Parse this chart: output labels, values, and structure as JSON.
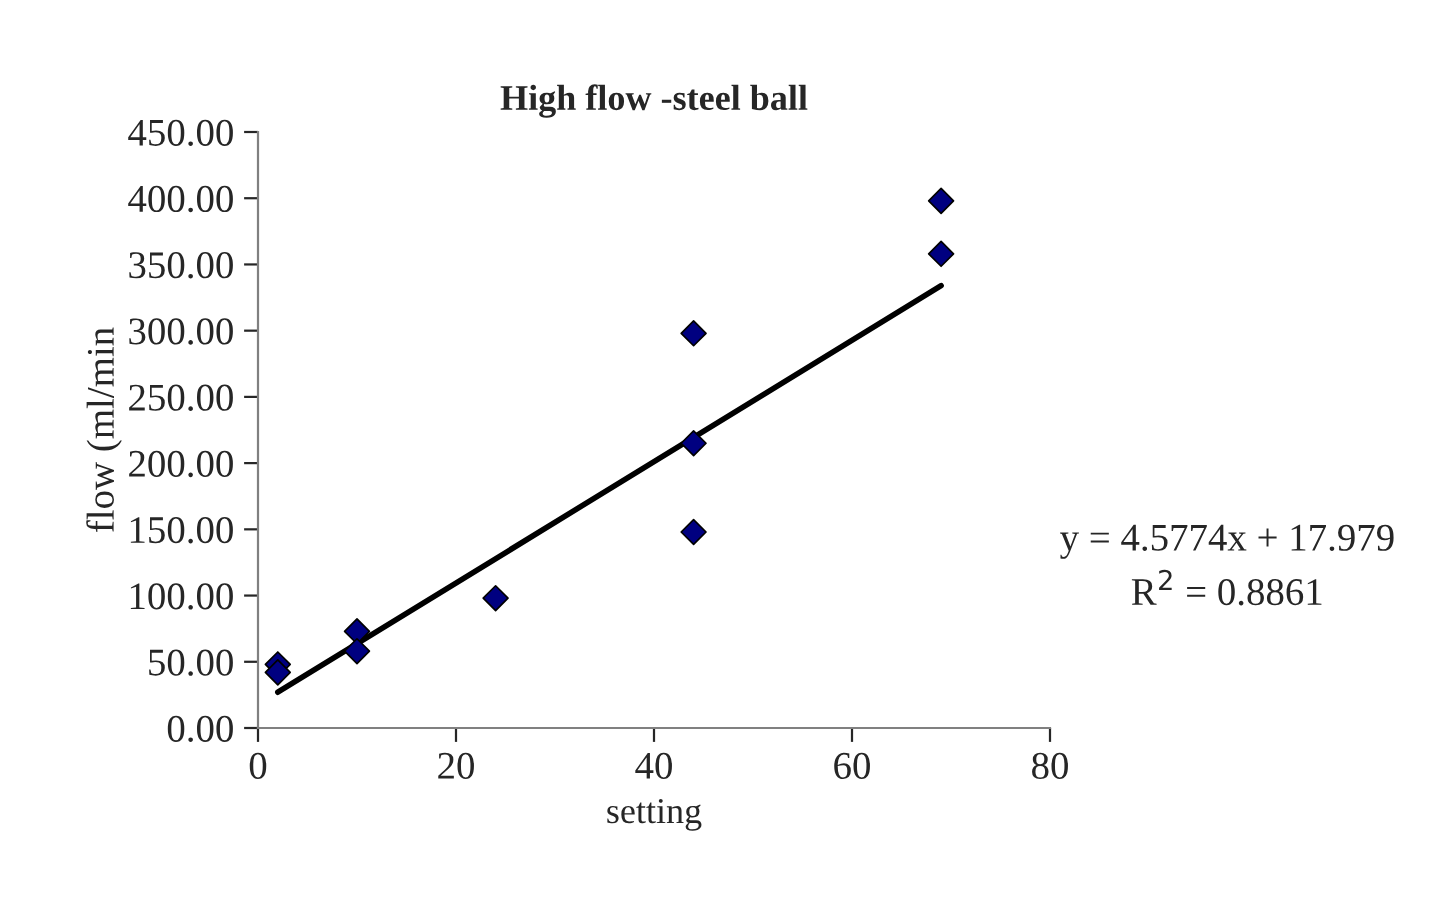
{
  "chart_data": {
    "type": "scatter",
    "title": "High flow -steel ball",
    "xlabel": "setting",
    "ylabel": "flow (ml/min",
    "series": [
      {
        "color": "#000080",
        "marker": "diamond",
        "x": [
          2,
          2,
          10,
          10,
          24,
          44,
          44,
          44,
          69,
          69
        ],
        "values": [
          48,
          42,
          73,
          58,
          98,
          298,
          215,
          148,
          398,
          358
        ]
      },
      {
        "type": "line",
        "color": "#000000",
        "marker": "none",
        "line_style": "solid",
        "x": [
          2,
          69
        ],
        "values": [
          27,
          334
        ]
      }
    ],
    "annotations": [
      "y = 4.5774x + 17.979",
      "R$^{2}$ = 0.8861"
    ],
    "xlim": [
      0,
      80
    ],
    "xticks": [
      0,
      20,
      40,
      60,
      80
    ],
    "ylim": [
      0,
      450
    ],
    "yticks": [
      {
        "value": 0,
        "label": "0.00"
      },
      {
        "value": 50,
        "label": "50.00"
      },
      {
        "value": 100,
        "label": "100.00"
      },
      {
        "value": 150,
        "label": "150.00"
      },
      {
        "value": 200,
        "label": "200.00"
      },
      {
        "value": 250,
        "label": "250.00"
      },
      {
        "value": 300,
        "label": "300.00"
      },
      {
        "value": 350,
        "label": "350.00"
      },
      {
        "value": 400,
        "label": "400.00"
      },
      {
        "value": 450,
        "label": "450.00"
      }
    ],
    "grid": false,
    "legend": false
  }
}
